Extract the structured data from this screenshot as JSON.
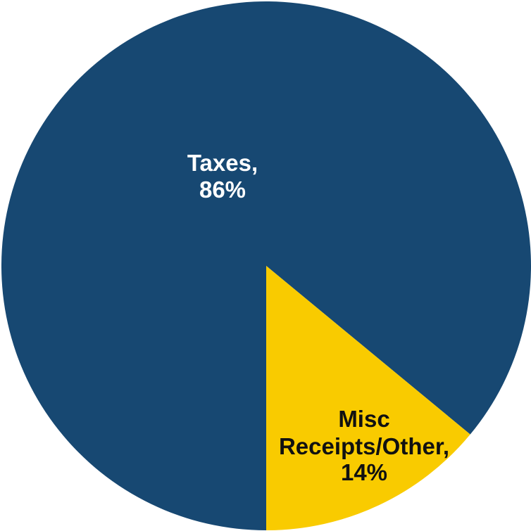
{
  "chart_data": {
    "type": "pie",
    "title": "",
    "slices": [
      {
        "name": "Taxes,",
        "value": 86,
        "label": "86%",
        "color": "#174872",
        "label_color": "#ffffff"
      },
      {
        "name": "Misc Receipts/Other,",
        "name_lines": [
          "Misc",
          "Receipts/Other,"
        ],
        "value": 14,
        "label": "14%",
        "color": "#f9cb00",
        "label_color": "#111111"
      }
    ],
    "start_angle_deg": 90,
    "direction": "clockwise-from-bottom",
    "legend": "none"
  }
}
